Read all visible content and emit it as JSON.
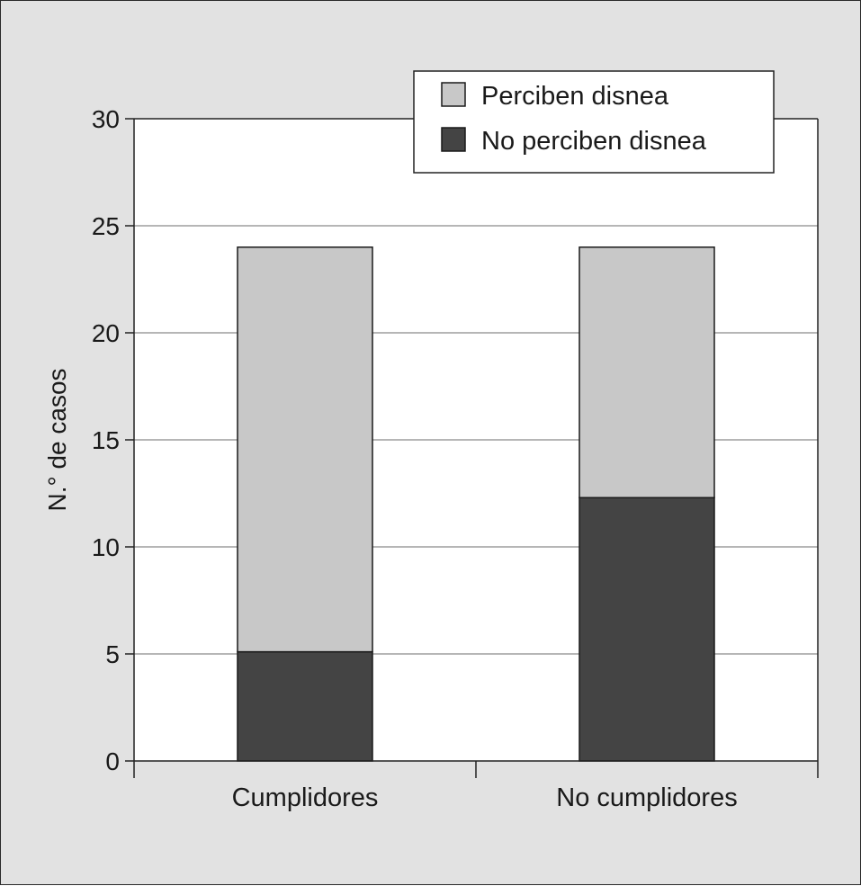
{
  "chart_data": {
    "type": "bar",
    "stacked": true,
    "categories": [
      "Cumplidores",
      "No cumplidores"
    ],
    "series": [
      {
        "name": "Perciben disnea",
        "values": [
          18.9,
          11.7
        ],
        "color": "#c8c8c8"
      },
      {
        "name": "No perciben disnea",
        "values": [
          5.1,
          12.3
        ],
        "color": "#444444"
      }
    ],
    "title": "",
    "xlabel": "",
    "ylabel": "N.° de casos",
    "ylim": [
      0,
      30
    ],
    "yticks": [
      "0",
      "5",
      "10",
      "15",
      "20",
      "25",
      "30"
    ],
    "grid": true,
    "legend_position": "top-right",
    "colors": {
      "background": "#e2e2e2",
      "plot_area": "#ffffff",
      "gridline": "#8a8a8a",
      "axis": "#222222"
    }
  }
}
